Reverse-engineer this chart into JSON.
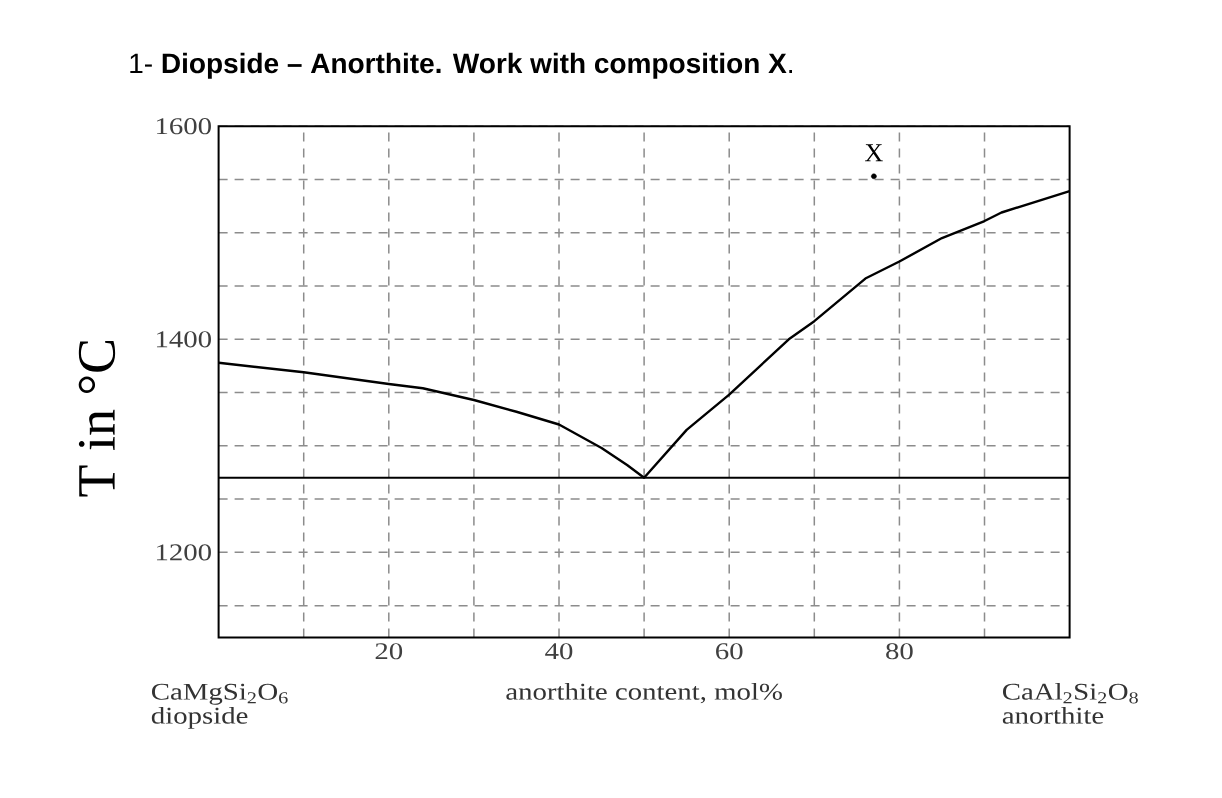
{
  "chart_data": {
    "type": "line",
    "title": "1- **Diopside – Anorthite. Work with composition X**.",
    "xlabel": "anorthite content, mol%",
    "ylabel": "T in °C",
    "xlim": [
      0,
      100
    ],
    "ylim": [
      1120,
      1600
    ],
    "xticks": [
      {
        "value": 10,
        "label": null
      },
      20,
      {
        "value": 30,
        "label": null
      },
      40,
      {
        "value": 50,
        "label": null
      },
      60,
      {
        "value": 70,
        "label": null
      },
      80,
      {
        "value": 90,
        "label": null
      }
    ],
    "yticks": [
      {
        "value": 1150,
        "label": null
      },
      1200,
      {
        "value": 1250,
        "label": null
      },
      {
        "value": 1300,
        "label": null
      },
      {
        "value": 1350,
        "label": null
      },
      1400,
      {
        "value": 1450,
        "label": null
      },
      {
        "value": 1500,
        "label": null
      },
      {
        "value": 1550,
        "label": null
      },
      1600
    ],
    "grid": true,
    "series": [
      {
        "color": "#000000",
        "x": [
          0,
          10,
          20,
          24,
          30,
          35,
          40,
          45,
          48,
          50,
          55,
          60,
          67,
          70,
          76,
          80,
          85,
          90,
          92,
          100
        ],
        "values": [
          1378,
          1369,
          1358,
          1354,
          1343,
          1332,
          1320,
          1298,
          1282,
          1270,
          1315,
          1348,
          1400,
          1417,
          1457,
          1473,
          1495,
          1511,
          1519,
          1539
        ]
      },
      {
        "type": "scatter",
        "name": "X",
        "color": "#000000",
        "marker": "circle",
        "x": [
          77
        ],
        "values": [
          1553
        ]
      }
    ],
    "ref_lines": [
      {
        "axis": "y",
        "value": 1270,
        "color": "#000000"
      }
    ],
    "annotations": [
      "CaMgSi$_{2}$O$_{6}$",
      "diopside",
      "CaAl$_{2}$Si$_{2}$O$_{8}$",
      "anorthite"
    ]
  }
}
